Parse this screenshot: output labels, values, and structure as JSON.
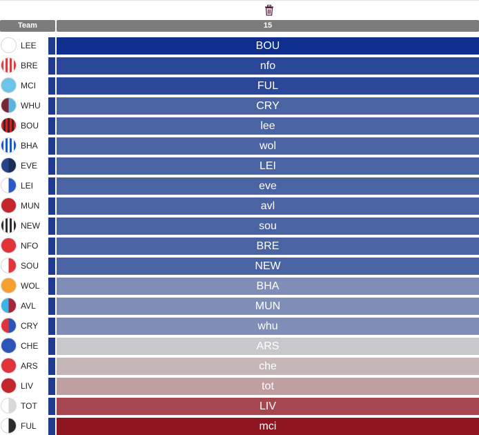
{
  "header": {
    "team_label": "Team",
    "gameweek_label": "15",
    "delete_icon": "trash-icon"
  },
  "colors": {
    "header_bg": "#7b7b7b",
    "team_marker": "#1f3b8f"
  },
  "rows": [
    {
      "team": "LEE",
      "fixture": "BOU",
      "difficulty_color": "#0e2f8e",
      "badge_colors": [
        "#ffffff",
        "#ffffff"
      ]
    },
    {
      "team": "BRE",
      "fixture": "nfo",
      "difficulty_color": "#2a479a",
      "badge_colors": [
        "#e03a3e",
        "#ffffff"
      ]
    },
    {
      "team": "MCI",
      "fixture": "FUL",
      "difficulty_color": "#2a479a",
      "badge_colors": [
        "#6cc5e9",
        "#6cc5e9"
      ]
    },
    {
      "team": "WHU",
      "fixture": "CRY",
      "difficulty_color": "#4a63a3",
      "badge_colors": [
        "#7a2638",
        "#5db3e0"
      ]
    },
    {
      "team": "BOU",
      "fixture": "lee",
      "difficulty_color": "#4a63a3",
      "badge_colors": [
        "#c8262b",
        "#2b2b2b"
      ]
    },
    {
      "team": "BHA",
      "fixture": "wol",
      "difficulty_color": "#4a63a3",
      "badge_colors": [
        "#1a56c4",
        "#ffffff"
      ]
    },
    {
      "team": "EVE",
      "fixture": "LEI",
      "difficulty_color": "#4a63a3",
      "badge_colors": [
        "#274488",
        "#1b2b5a"
      ]
    },
    {
      "team": "LEI",
      "fixture": "eve",
      "difficulty_color": "#4a63a3",
      "badge_colors": [
        "#ffffff",
        "#2c59c6"
      ]
    },
    {
      "team": "MUN",
      "fixture": "avl",
      "difficulty_color": "#4a63a3",
      "badge_colors": [
        "#c4262e",
        "#c4262e"
      ]
    },
    {
      "team": "NEW",
      "fixture": "sou",
      "difficulty_color": "#4a63a3",
      "badge_colors": [
        "#2b2b2b",
        "#ffffff"
      ]
    },
    {
      "team": "NFO",
      "fixture": "BRE",
      "difficulty_color": "#4a63a3",
      "badge_colors": [
        "#e0343a",
        "#e0343a"
      ]
    },
    {
      "team": "SOU",
      "fixture": "NEW",
      "difficulty_color": "#4a63a3",
      "badge_colors": [
        "#ffffff",
        "#e0343a"
      ]
    },
    {
      "team": "WOL",
      "fixture": "BHA",
      "difficulty_color": "#7f8db7",
      "badge_colors": [
        "#f6a02f",
        "#f6a02f"
      ]
    },
    {
      "team": "AVL",
      "fixture": "MUN",
      "difficulty_color": "#7f8db7",
      "badge_colors": [
        "#3ab4e6",
        "#a3263d"
      ]
    },
    {
      "team": "CRY",
      "fixture": "whu",
      "difficulty_color": "#7f8db7",
      "badge_colors": [
        "#e0343a",
        "#2d55b8"
      ]
    },
    {
      "team": "CHE",
      "fixture": "ARS",
      "difficulty_color": "#c7c7cc",
      "badge_colors": [
        "#2d55b8",
        "#2d55b8"
      ]
    },
    {
      "team": "ARS",
      "fixture": "che",
      "difficulty_color": "#c4b5b7",
      "badge_colors": [
        "#e0343a",
        "#e0343a"
      ]
    },
    {
      "team": "LIV",
      "fixture": "tot",
      "difficulty_color": "#bf9fa2",
      "badge_colors": [
        "#c4262e",
        "#c4262e"
      ]
    },
    {
      "team": "TOT",
      "fixture": "LIV",
      "difficulty_color": "#a4454f",
      "badge_colors": [
        "#ffffff",
        "#d8d8d8"
      ]
    },
    {
      "team": "FUL",
      "fixture": "mci",
      "difficulty_color": "#8f1520",
      "badge_colors": [
        "#ffffff",
        "#2b2b2b"
      ]
    }
  ]
}
